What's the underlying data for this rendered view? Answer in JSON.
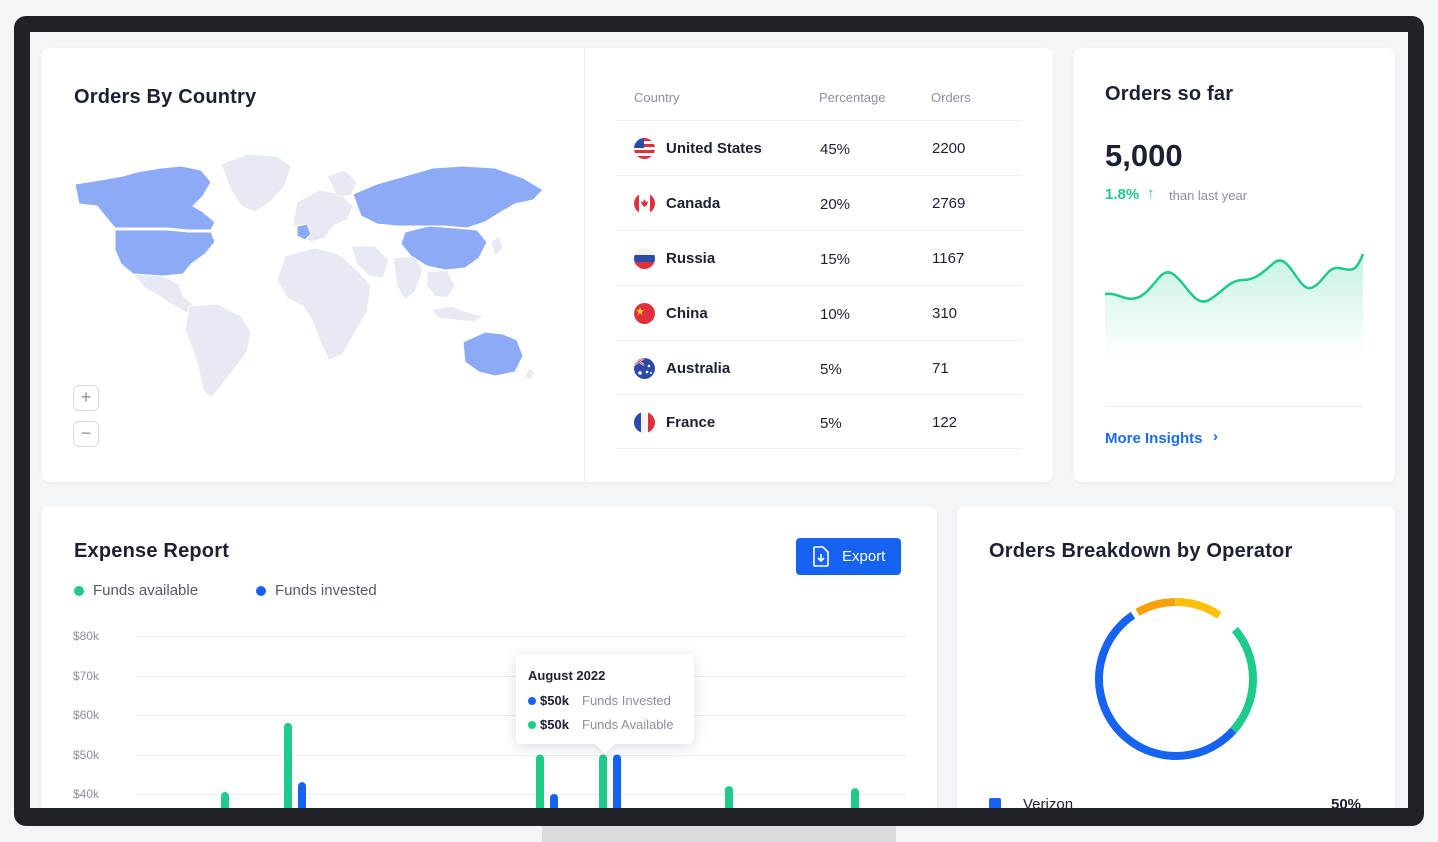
{
  "country_card": {
    "title": "Orders By Country",
    "zoom_in": "+",
    "zoom_out": "−",
    "columns": [
      "Country",
      "Percentage",
      "Orders"
    ],
    "rows": [
      {
        "country": "United States",
        "percentage": "45%",
        "orders": "2200"
      },
      {
        "country": "Canada",
        "percentage": "20%",
        "orders": "2769"
      },
      {
        "country": "Russia",
        "percentage": "15%",
        "orders": "1167"
      },
      {
        "country": "China",
        "percentage": "10%",
        "orders": "310"
      },
      {
        "country": "Australia",
        "percentage": "5%",
        "orders": "71"
      },
      {
        "country": "France",
        "percentage": "5%",
        "orders": "122"
      }
    ],
    "highlight_color": "#8daaf7",
    "base_color": "#e7e9f3"
  },
  "sofar_card": {
    "title": "Orders so far",
    "value": "5,000",
    "growth": "1.8%",
    "growth_arrow": "↑",
    "growth_text": "than last year",
    "link": "More Insights",
    "link_chevron": "›",
    "line_color": "#1fcb8a"
  },
  "expense_card": {
    "title": "Expense Report",
    "legend": [
      {
        "label": "Funds available",
        "color": "#1fcb8a"
      },
      {
        "label": "Funds invested",
        "color": "#1563f0"
      }
    ],
    "export_label": "Export",
    "y_ticks": [
      "$80k",
      "$70k",
      "$60k",
      "$50k",
      "$40k"
    ],
    "tooltip": {
      "title": "August 2022",
      "invested_value": "$50k",
      "invested_label": "Funds Invested",
      "available_value": "$50k",
      "available_label": "Funds Available"
    }
  },
  "breakdown_card": {
    "title": "Orders Breakdown by Operator",
    "operators": [
      {
        "name": "Verizon",
        "percent": "50%",
        "color": "#1563f0"
      }
    ],
    "donut_colors": [
      "#1563f0",
      "#1fcb8a",
      "#ffc107",
      "#f5a00b"
    ]
  },
  "chart_data": {
    "type": "bar",
    "title": "Expense Report",
    "y_ticks": [
      "$80k",
      "$70k",
      "$60k",
      "$50k",
      "$40k"
    ],
    "ylim": [
      40,
      80
    ],
    "series": [
      {
        "name": "Funds available",
        "values": [
          40.5,
          58,
          50,
          50,
          42,
          41.5
        ]
      },
      {
        "name": "Funds invested",
        "values": [
          43,
          40,
          50
        ]
      }
    ],
    "grid": true,
    "legend": "top-left"
  }
}
